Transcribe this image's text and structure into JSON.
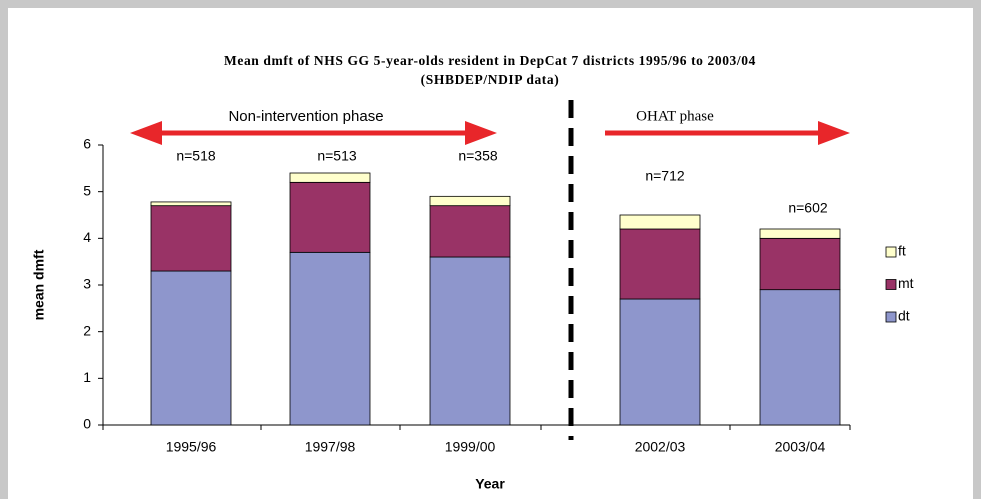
{
  "chart_data": {
    "type": "stacked-bar",
    "title": "Mean dmft of NHS GG 5-year-olds resident in DepCat 7 districts 1995/96 to 2003/04",
    "subtitle": "(SHBDEP/NDIP data)",
    "x_label": "Year",
    "y_label": "mean dmft",
    "categories": [
      "1995/96",
      "1997/98",
      "1999/00",
      "2002/03",
      "2003/04"
    ],
    "series": [
      {
        "name": "dt",
        "color": "#8e96cc",
        "values": [
          3.3,
          3.7,
          3.6,
          2.7,
          2.9
        ]
      },
      {
        "name": "mt",
        "color": "#993366",
        "values": [
          1.4,
          1.5,
          1.1,
          1.5,
          1.1
        ]
      },
      {
        "name": "ft",
        "color": "#ffffcc",
        "values": [
          0.08,
          0.2,
          0.2,
          0.3,
          0.2
        ]
      }
    ],
    "sample_sizes": [
      "n=518",
      "n=513",
      "n=358",
      "n=712",
      "n=602"
    ],
    "phases": [
      "Non-intervention phase",
      "OHAT phase"
    ],
    "ylim": [
      0,
      6
    ],
    "yticks": [
      0,
      1,
      2,
      3,
      4,
      5,
      6
    ],
    "grid": false
  }
}
